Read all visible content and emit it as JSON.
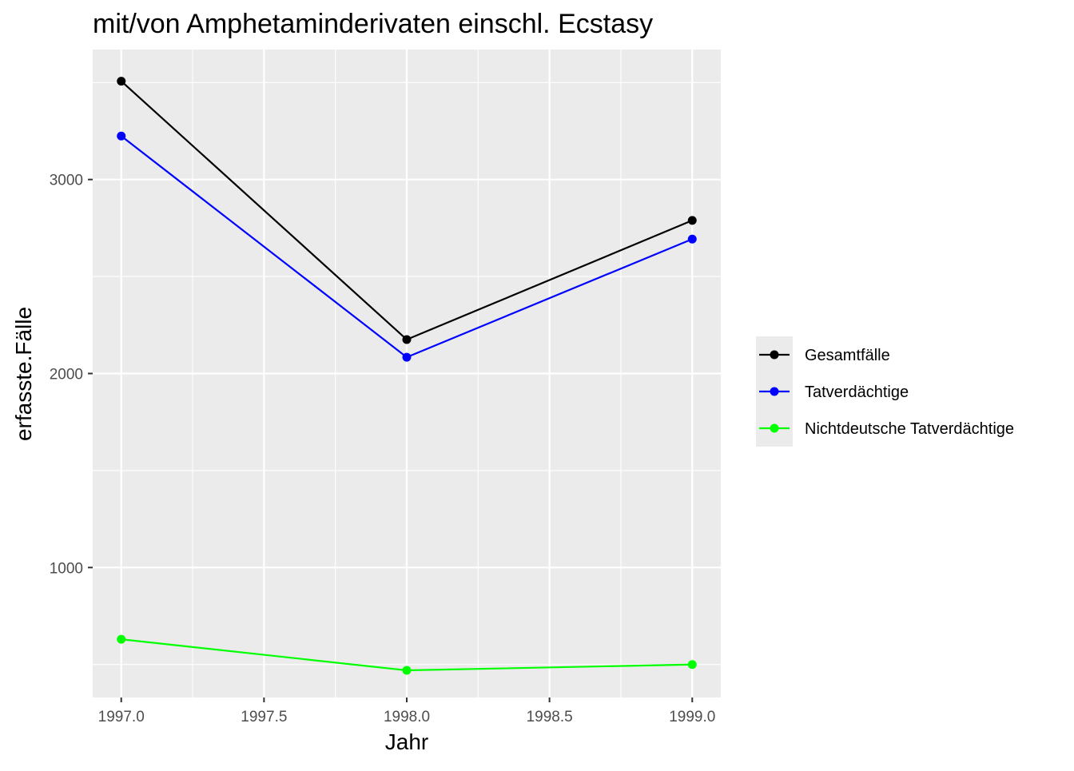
{
  "chart_data": {
    "type": "line",
    "title": "mit/von Amphetaminderivaten einschl. Ecstasy",
    "xlabel": "Jahr",
    "ylabel": "erfasste.Fälle",
    "x": [
      1997.0,
      1998.0,
      1999.0
    ],
    "xlim": [
      1996.9,
      1999.1
    ],
    "ylim": [
      330,
      3670
    ],
    "x_ticks": [
      1997.0,
      1997.5,
      1998.0,
      1998.5,
      1999.0
    ],
    "x_tick_labels": [
      "1997.0",
      "1997.5",
      "1998.0",
      "1998.5",
      "1999.0"
    ],
    "y_ticks": [
      1000,
      2000,
      3000
    ],
    "y_tick_labels": [
      "1000",
      "2000",
      "3000"
    ],
    "y_minor_ticks": [
      500,
      1500,
      2500,
      3500
    ],
    "grid": true,
    "legend_position": "right",
    "series": [
      {
        "name": "Gesamtfälle",
        "color": "#000000",
        "values": [
          3507,
          2175,
          2789
        ]
      },
      {
        "name": "Tatverdächtige",
        "color": "#0000ff",
        "values": [
          3224,
          2084,
          2693
        ]
      },
      {
        "name": "Nichtdeutsche Tatverdächtige",
        "color": "#00ff00",
        "values": [
          630,
          470,
          500
        ]
      }
    ]
  }
}
